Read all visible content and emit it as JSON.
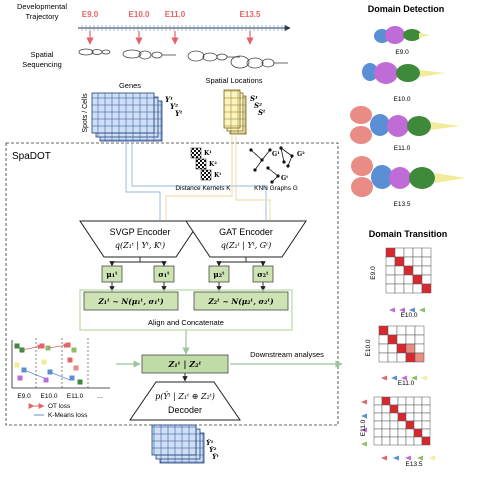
{
  "left": {
    "dev_label_1": "Developmental",
    "dev_label_2": "Trajectory",
    "spatial_label_1": "Spatial",
    "spatial_label_2": "Sequencing",
    "timepoints": [
      "E9.0",
      "E10.0",
      "E11.0",
      "E13.5"
    ],
    "genes_label": "Genes",
    "spots_label": "Spots / Cells",
    "y_labels": [
      "Y¹",
      "Y²",
      "Yᵗ"
    ],
    "locations_label": "Spatial Locations",
    "s_labels": [
      "S¹",
      "S²",
      "Sᵗ"
    ]
  },
  "spadot": {
    "title": "SpaDOT",
    "kernel_labels": [
      "K¹",
      "K²",
      "Kᵗ"
    ],
    "kernels_caption": "Distance Kernels K",
    "graph_labels": [
      "G¹",
      "G²",
      "Gᵗ"
    ],
    "graphs_caption": "KNN Graphs G",
    "svgp_title": "SVGP Encoder",
    "svgp_formula": "q(Z₁ᵗ | Yᵗ, Kᵗ)",
    "gat_title": "GAT Encoder",
    "gat_formula": "q(Z₂ᵗ | Yᵗ, Gᵗ)",
    "mu1": "μ₁ᵗ",
    "sigma1": "σ₁ᵗ",
    "mu2": "μ₂ᵗ",
    "sigma2": "σ₂ᵗ",
    "z1_formula": "Z₁ᵗ ~ N(μ₁ᵗ, σ₁ᵗ)",
    "z2_formula": "Z₂ᵗ ~ N(μ₂ᵗ, σ₂ᵗ)",
    "align_label": "Align and Concatenate",
    "concat_formula": "Z₁ᵗ | Z₂ᵗ",
    "decoder_formula": "p(Ŷᵗ | Z₁ᵗ ⊕ Z₂ᵗ)",
    "decoder_title": "Decoder",
    "downstream_label": "Downstream analyses",
    "mini_ticks": [
      "E9.0",
      "E10.0",
      "E11.0"
    ],
    "ot_loss": "OT loss",
    "kmeans_loss": "K-Means loss",
    "ellipsis": "...",
    "yhat_labels": [
      "Ŷ¹",
      "Ŷ²",
      "Ŷᵗ"
    ]
  },
  "right": {
    "detection_title": "Domain Detection",
    "embryo_labels": [
      "E9.0",
      "E10.0",
      "E11.0",
      "E13.5"
    ],
    "transition_title": "Domain Transition",
    "matrices": [
      {
        "ylabel": "E9.0",
        "xlabel": "E10.0"
      },
      {
        "ylabel": "E10.0",
        "xlabel": "E11.0"
      },
      {
        "ylabel": "E11.0",
        "xlabel": "E13.5"
      }
    ]
  },
  "colors": {
    "red": "#e3656a",
    "blue": "#5a8fd6",
    "green": "#8bbf6a",
    "dark_green": "#3f8a3a",
    "purple": "#c06cd6",
    "yellow": "#f2ec9a",
    "salmon": "#e98c86"
  }
}
